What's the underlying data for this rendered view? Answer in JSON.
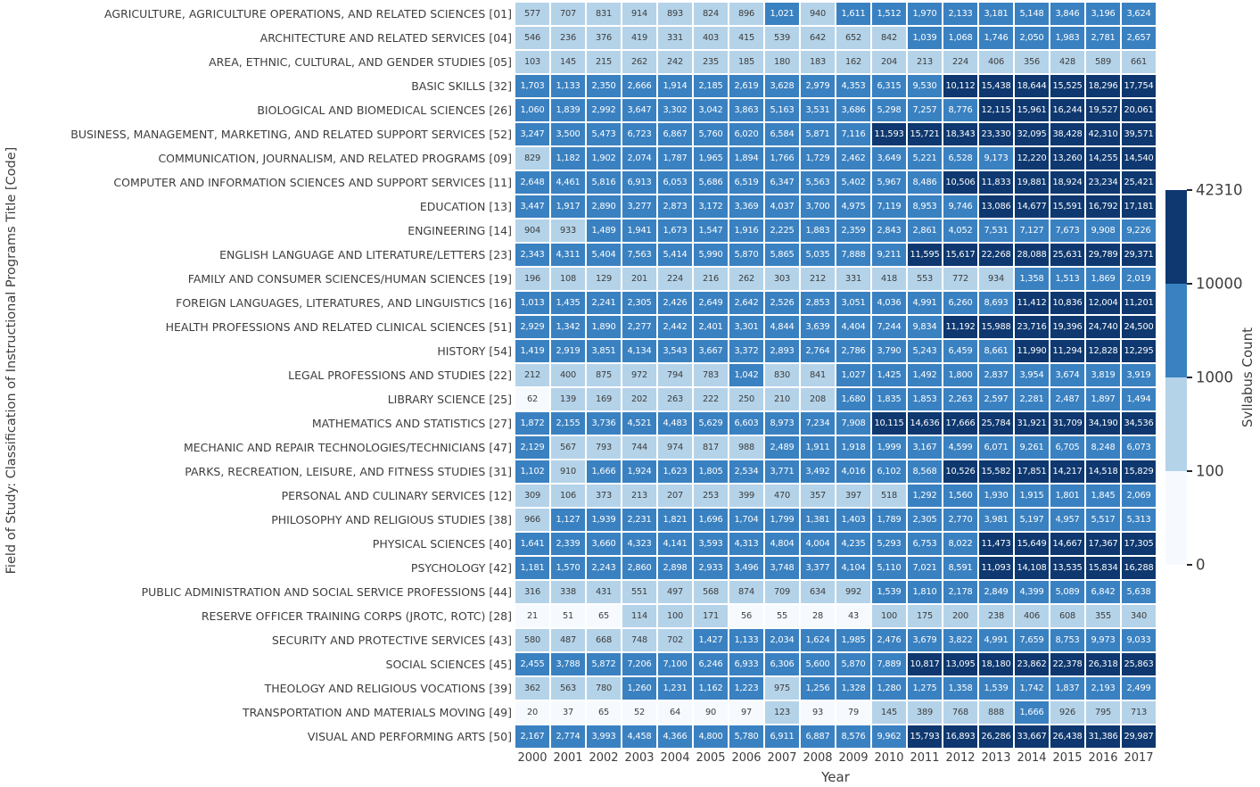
{
  "chart_data": {
    "type": "heatmap",
    "xlabel": "Year",
    "ylabel": "Field of Study: Classification of Instructional Programs Title [Code]",
    "x_categories": [
      "2000",
      "2001",
      "2002",
      "2003",
      "2004",
      "2005",
      "2006",
      "2007",
      "2008",
      "2009",
      "2010",
      "2011",
      "2012",
      "2013",
      "2014",
      "2015",
      "2016",
      "2017"
    ],
    "rows": [
      {
        "label": "AGRICULTURE, AGRICULTURE OPERATIONS, AND RELATED SCIENCES [01]",
        "values": [
          577,
          707,
          831,
          914,
          893,
          824,
          896,
          1021,
          940,
          1611,
          1512,
          1970,
          2133,
          3181,
          5148,
          3846,
          3196,
          3624
        ]
      },
      {
        "label": "ARCHITECTURE AND RELATED SERVICES [04]",
        "values": [
          546,
          236,
          376,
          419,
          331,
          403,
          415,
          539,
          642,
          652,
          842,
          1039,
          1068,
          1746,
          2050,
          1983,
          2781,
          2657
        ]
      },
      {
        "label": "AREA, ETHNIC, CULTURAL, AND GENDER STUDIES [05]",
        "values": [
          103,
          145,
          215,
          262,
          242,
          235,
          185,
          180,
          183,
          162,
          204,
          213,
          224,
          406,
          356,
          428,
          589,
          661
        ]
      },
      {
        "label": "BASIC SKILLS [32]",
        "values": [
          1703,
          1133,
          2350,
          2666,
          1914,
          2185,
          2619,
          3628,
          2979,
          4353,
          6315,
          9530,
          10112,
          15438,
          18644,
          15525,
          18296,
          17754
        ]
      },
      {
        "label": "BIOLOGICAL AND BIOMEDICAL SCIENCES [26]",
        "values": [
          1060,
          1839,
          2992,
          3647,
          3302,
          3042,
          3863,
          5163,
          3531,
          3686,
          5298,
          7257,
          8776,
          12115,
          15961,
          16244,
          19527,
          20061
        ]
      },
      {
        "label": "BUSINESS, MANAGEMENT, MARKETING, AND RELATED SUPPORT SERVICES [52]",
        "values": [
          3247,
          3500,
          5473,
          6723,
          6867,
          5760,
          6020,
          6584,
          5871,
          7116,
          11593,
          15721,
          18343,
          23330,
          32095,
          38428,
          42310,
          39571
        ]
      },
      {
        "label": "COMMUNICATION, JOURNALISM, AND RELATED PROGRAMS [09]",
        "values": [
          829,
          1182,
          1902,
          2074,
          1787,
          1965,
          1894,
          1766,
          1729,
          2462,
          3649,
          5221,
          6528,
          9173,
          12220,
          13260,
          14255,
          14540
        ]
      },
      {
        "label": "COMPUTER AND INFORMATION SCIENCES AND SUPPORT SERVICES [11]",
        "values": [
          2648,
          4461,
          5816,
          6913,
          6053,
          5686,
          6519,
          6347,
          5563,
          5402,
          5967,
          8486,
          10506,
          11833,
          19881,
          18924,
          23234,
          25421
        ]
      },
      {
        "label": "EDUCATION [13]",
        "values": [
          3447,
          1917,
          2890,
          3277,
          2873,
          3172,
          3369,
          4037,
          3700,
          4975,
          7119,
          8953,
          9746,
          13086,
          14677,
          15591,
          16792,
          17181
        ]
      },
      {
        "label": "ENGINEERING [14]",
        "values": [
          904,
          933,
          1489,
          1941,
          1673,
          1547,
          1916,
          2225,
          1883,
          2359,
          2843,
          2861,
          4052,
          7531,
          7127,
          7673,
          9908,
          9226
        ]
      },
      {
        "label": "ENGLISH LANGUAGE AND LITERATURE/LETTERS [23]",
        "values": [
          2343,
          4311,
          5404,
          7563,
          5414,
          5990,
          5870,
          5865,
          5035,
          7888,
          9211,
          11595,
          15617,
          22268,
          28088,
          25631,
          29789,
          29371
        ]
      },
      {
        "label": "FAMILY AND CONSUMER SCIENCES/HUMAN SCIENCES [19]",
        "values": [
          196,
          108,
          129,
          201,
          224,
          216,
          262,
          303,
          212,
          331,
          418,
          553,
          772,
          934,
          1358,
          1513,
          1869,
          2019
        ]
      },
      {
        "label": "FOREIGN LANGUAGES, LITERATURES, AND LINGUISTICS [16]",
        "values": [
          1013,
          1435,
          2241,
          2305,
          2426,
          2649,
          2642,
          2526,
          2853,
          3051,
          4036,
          4991,
          6260,
          8693,
          11412,
          10836,
          12004,
          11201
        ]
      },
      {
        "label": "HEALTH PROFESSIONS AND RELATED CLINICAL SCIENCES [51]",
        "values": [
          2929,
          1342,
          1890,
          2277,
          2442,
          2401,
          3301,
          4844,
          3639,
          4404,
          7244,
          9834,
          11192,
          15988,
          23716,
          19396,
          24740,
          24500
        ]
      },
      {
        "label": "HISTORY [54]",
        "values": [
          1419,
          2919,
          3851,
          4134,
          3543,
          3667,
          3372,
          2893,
          2764,
          2786,
          3790,
          5243,
          6459,
          8661,
          11990,
          11294,
          12828,
          12295
        ]
      },
      {
        "label": "LEGAL PROFESSIONS AND STUDIES [22]",
        "values": [
          212,
          400,
          875,
          972,
          794,
          783,
          1042,
          830,
          841,
          1027,
          1425,
          1492,
          1800,
          2837,
          3954,
          3674,
          3819,
          3919
        ]
      },
      {
        "label": "LIBRARY SCIENCE [25]",
        "values": [
          62,
          139,
          169,
          202,
          263,
          222,
          250,
          210,
          208,
          1680,
          1835,
          1853,
          2263,
          2597,
          2281,
          2487,
          1897,
          1494
        ]
      },
      {
        "label": "MATHEMATICS AND STATISTICS [27]",
        "values": [
          1872,
          2155,
          3736,
          4521,
          4483,
          5629,
          6603,
          8973,
          7234,
          7908,
          10115,
          14636,
          17666,
          25784,
          31921,
          31709,
          34190,
          34536
        ]
      },
      {
        "label": "MECHANIC AND REPAIR TECHNOLOGIES/TECHNICIANS [47]",
        "values": [
          2129,
          567,
          793,
          744,
          974,
          817,
          988,
          2489,
          1911,
          1918,
          1999,
          3167,
          4599,
          6071,
          9261,
          6705,
          8248,
          6073
        ]
      },
      {
        "label": "PARKS, RECREATION, LEISURE, AND FITNESS STUDIES [31]",
        "values": [
          1102,
          910,
          1666,
          1924,
          1623,
          1805,
          2534,
          3771,
          3492,
          4016,
          6102,
          8568,
          10526,
          15582,
          17851,
          14217,
          14518,
          15829
        ]
      },
      {
        "label": "PERSONAL AND CULINARY SERVICES [12]",
        "values": [
          309,
          106,
          373,
          213,
          207,
          253,
          399,
          470,
          357,
          397,
          518,
          1292,
          1560,
          1930,
          1915,
          1801,
          1845,
          2069
        ]
      },
      {
        "label": "PHILOSOPHY AND RELIGIOUS STUDIES [38]",
        "values": [
          966,
          1127,
          1939,
          2231,
          1821,
          1696,
          1704,
          1799,
          1381,
          1403,
          1789,
          2305,
          2770,
          3981,
          5197,
          4957,
          5517,
          5313
        ]
      },
      {
        "label": "PHYSICAL SCIENCES [40]",
        "values": [
          1641,
          2339,
          3660,
          4323,
          4141,
          3593,
          4313,
          4804,
          4004,
          4235,
          5293,
          6753,
          8022,
          11473,
          15649,
          14667,
          17367,
          17305
        ]
      },
      {
        "label": "PSYCHOLOGY [42]",
        "values": [
          1181,
          1570,
          2243,
          2860,
          2898,
          2933,
          3496,
          3748,
          3377,
          4104,
          5110,
          7021,
          8591,
          11093,
          14108,
          13535,
          15834,
          16288
        ]
      },
      {
        "label": "PUBLIC ADMINISTRATION AND SOCIAL SERVICE PROFESSIONS [44]",
        "values": [
          316,
          338,
          431,
          551,
          497,
          568,
          874,
          709,
          634,
          992,
          1539,
          1810,
          2178,
          2849,
          4399,
          5089,
          6842,
          5638
        ]
      },
      {
        "label": "RESERVE OFFICER TRAINING CORPS (JROTC, ROTC) [28]",
        "values": [
          21,
          51,
          65,
          114,
          100,
          171,
          56,
          55,
          28,
          43,
          100,
          175,
          200,
          238,
          406,
          608,
          355,
          340
        ]
      },
      {
        "label": "SECURITY AND PROTECTIVE SERVICES [43]",
        "values": [
          580,
          487,
          668,
          748,
          702,
          1427,
          1133,
          2034,
          1624,
          1985,
          2476,
          3679,
          3822,
          4991,
          7659,
          8753,
          9973,
          9033
        ]
      },
      {
        "label": "SOCIAL SCIENCES [45]",
        "values": [
          2455,
          3788,
          5872,
          7206,
          7100,
          6246,
          6933,
          6306,
          5600,
          5870,
          7889,
          10817,
          13095,
          18180,
          23862,
          22378,
          26318,
          25863
        ]
      },
      {
        "label": "THEOLOGY AND RELIGIOUS VOCATIONS [39]",
        "values": [
          362,
          563,
          780,
          1260,
          1231,
          1162,
          1223,
          975,
          1256,
          1328,
          1280,
          1275,
          1358,
          1539,
          1742,
          1837,
          2193,
          2499
        ]
      },
      {
        "label": "TRANSPORTATION AND MATERIALS MOVING [49]",
        "values": [
          20,
          37,
          65,
          52,
          64,
          90,
          97,
          123,
          93,
          79,
          145,
          389,
          768,
          888,
          1666,
          926,
          795,
          713
        ]
      },
      {
        "label": "VISUAL AND PERFORMING ARTS [50]",
        "values": [
          2167,
          2774,
          3993,
          4458,
          4366,
          4800,
          5780,
          6911,
          6887,
          8576,
          9962,
          15793,
          16893,
          26286,
          33667,
          26438,
          31386,
          29987
        ]
      }
    ],
    "colorbar": {
      "label": "Svllabus Count",
      "ticks": [
        "42310",
        "10000",
        "1000",
        "100",
        "0"
      ],
      "bin_thresholds": [
        100,
        1000,
        10000
      ],
      "bin_colors": [
        "#f6fafe",
        "#b4d3e9",
        "#3a81c1",
        "#0e386f"
      ],
      "max": 42310
    },
    "cell_text_colors": {
      "on_light": "#3d3d3d",
      "on_dark": "#ffffff"
    },
    "grid_line_color": "#ffffff",
    "legend_position": "right"
  }
}
